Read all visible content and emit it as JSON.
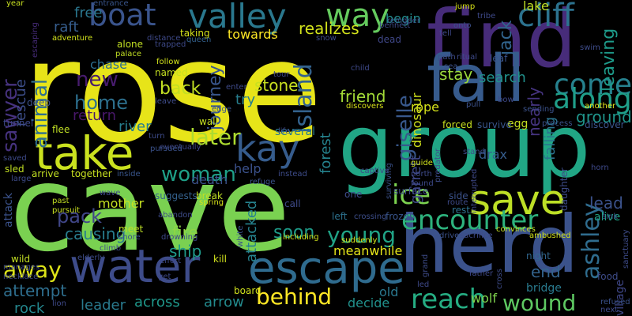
{
  "word_cloud": {
    "background": "#000000",
    "words": [
      {
        "text": "rose",
        "color": "#e7e419"
      },
      {
        "text": "cave",
        "color": "#7ad151"
      },
      {
        "text": "group",
        "color": "#21a685"
      },
      {
        "text": "find",
        "color": "#472c7a"
      },
      {
        "text": "herd",
        "color": "#3b528b"
      },
      {
        "text": "fall",
        "color": "#375b8d"
      },
      {
        "text": "take",
        "color": "#cae11f"
      },
      {
        "text": "water",
        "color": "#3e4c8a"
      },
      {
        "text": "escape",
        "color": "#2f6b8e"
      },
      {
        "text": "boat",
        "color": "#3a548c"
      },
      {
        "text": "valley",
        "color": "#2a788e"
      },
      {
        "text": "kay",
        "color": "#365c8d"
      },
      {
        "text": "save",
        "color": "#bddf26"
      },
      {
        "text": "encounter",
        "color": "#2db27d"
      },
      {
        "text": "way",
        "color": "#65cb5e"
      },
      {
        "text": "cliff",
        "color": "#2c728e"
      },
      {
        "text": "reach",
        "color": "#25ac82"
      },
      {
        "text": "come",
        "color": "#26818e"
      },
      {
        "text": "along",
        "color": "#1f9e89"
      },
      {
        "text": "young",
        "color": "#20a386"
      },
      {
        "text": "ice",
        "color": "#7cd250"
      },
      {
        "text": "behind",
        "color": "#fde725"
      },
      {
        "text": "away",
        "color": "#dde318"
      },
      {
        "text": "pack",
        "color": "#404688"
      },
      {
        "text": "woman",
        "color": "#1fa088"
      },
      {
        "text": "later",
        "color": "#addc30"
      },
      {
        "text": "ashley",
        "color": "#2f6c8e"
      },
      {
        "text": "wound",
        "color": "#5ec962"
      },
      {
        "text": "giselle",
        "color": "#38588c"
      },
      {
        "text": "island",
        "color": "#33628d"
      },
      {
        "text": "new",
        "color": "#481c6e"
      },
      {
        "text": "home",
        "color": "#2d708e"
      },
      {
        "text": "back",
        "color": "#c2df23"
      },
      {
        "text": "sawyer",
        "color": "#46327e"
      },
      {
        "text": "animal",
        "color": "#2e6f8e"
      },
      {
        "text": "journey",
        "color": "#39568c"
      },
      {
        "text": "stone",
        "color": "#c8e020"
      },
      {
        "text": "friend",
        "color": "#a2da37"
      },
      {
        "text": "stay",
        "color": "#9bd93c"
      },
      {
        "text": "jack",
        "color": "#32658e"
      },
      {
        "text": "search",
        "color": "#21918c"
      },
      {
        "text": "ground",
        "color": "#1f958b"
      },
      {
        "text": "leaving",
        "color": "#1e9b8a"
      },
      {
        "text": "nearly",
        "color": "#463480"
      },
      {
        "text": "rescue",
        "color": "#3d4e8a"
      },
      {
        "text": "raft",
        "color": "#365d8d"
      },
      {
        "text": "free",
        "color": "#2a768e"
      },
      {
        "text": "begin",
        "color": "#228c8d"
      },
      {
        "text": "lake",
        "color": "#c0df25"
      },
      {
        "text": "realizes",
        "color": "#d2e21b"
      },
      {
        "text": "towards",
        "color": "#fde725"
      },
      {
        "text": "chase",
        "color": "#2e6e8e"
      },
      {
        "text": "return",
        "color": "#481769"
      },
      {
        "text": "river",
        "color": "#277f8e"
      },
      {
        "text": "try",
        "color": "#277e8e"
      },
      {
        "text": "forest",
        "color": "#25838e"
      },
      {
        "text": "help",
        "color": "#3b518b"
      },
      {
        "text": "mother",
        "color": "#c5e021"
      },
      {
        "text": "fire",
        "color": "#8ed645"
      },
      {
        "text": "ship",
        "color": "#1f9a8a"
      },
      {
        "text": "attacked",
        "color": "#26828e"
      },
      {
        "text": "soon",
        "color": "#1e9c89"
      },
      {
        "text": "meanwhile",
        "color": "#e5e419"
      },
      {
        "text": "garrett",
        "color": "#3f4889"
      },
      {
        "text": "dinosaur",
        "color": "#d0e11c"
      },
      {
        "text": "falling",
        "color": "#2b748e"
      },
      {
        "text": "lead",
        "color": "#3b528b"
      },
      {
        "text": "alive",
        "color": "#20a486"
      },
      {
        "text": "end",
        "color": "#33638d"
      },
      {
        "text": "attempt",
        "color": "#2e6e8e"
      },
      {
        "text": "leader",
        "color": "#297a8e"
      },
      {
        "text": "across",
        "color": "#1f988b"
      },
      {
        "text": "arrow",
        "color": "#238a8d"
      },
      {
        "text": "rock",
        "color": "#24878e"
      },
      {
        "text": "causing",
        "color": "#287d8e"
      },
      {
        "text": "decide",
        "color": "#21918c"
      },
      {
        "text": "wolf",
        "color": "#7fd34e"
      },
      {
        "text": "old",
        "color": "#2a778e"
      },
      {
        "text": "village",
        "color": "#3f4788"
      },
      {
        "text": "drax",
        "color": "#365d8d"
      },
      {
        "text": "rope",
        "color": "#d5e21a"
      },
      {
        "text": "eventually",
        "color": "#3f4788"
      },
      {
        "text": "death",
        "color": "#3b518b"
      },
      {
        "text": "several",
        "color": "#287c8e"
      },
      {
        "text": "sled",
        "color": "#c2df23"
      },
      {
        "text": "flee",
        "color": "#c0df25"
      },
      {
        "text": "wall",
        "color": "#c5e021"
      },
      {
        "text": "together",
        "color": "#c8e020"
      },
      {
        "text": "arrive",
        "color": "#c2df23"
      },
      {
        "text": "inside",
        "color": "#39568c"
      },
      {
        "text": "suggests",
        "color": "#34618d"
      },
      {
        "text": "instead",
        "color": "#3e4c8a"
      },
      {
        "text": "call",
        "color": "#3e4a89"
      },
      {
        "text": "meet",
        "color": "#bddf26"
      },
      {
        "text": "spring",
        "color": "#d8e219"
      },
      {
        "text": "break",
        "color": "#c0df25"
      },
      {
        "text": "board",
        "color": "#d0e11c"
      },
      {
        "text": "left",
        "color": "#2c718e"
      },
      {
        "text": "crossing",
        "color": "#3d4e8a"
      },
      {
        "text": "frozen",
        "color": "#39558c"
      },
      {
        "text": "surface",
        "color": "#3e4989"
      },
      {
        "text": "side",
        "color": "#3b528b"
      },
      {
        "text": "rest",
        "color": "#2d708e"
      },
      {
        "text": "daughter",
        "color": "#3e4c8a"
      },
      {
        "text": "night",
        "color": "#31668e"
      },
      {
        "text": "bridge",
        "color": "#297a8e"
      },
      {
        "text": "food",
        "color": "#3e4c8a"
      },
      {
        "text": "egg",
        "color": "#c5e021"
      },
      {
        "text": "forced",
        "color": "#c8e020"
      },
      {
        "text": "survive",
        "color": "#39568c"
      },
      {
        "text": "process",
        "color": "#3b518b"
      },
      {
        "text": "discover",
        "color": "#3a548c"
      },
      {
        "text": "another",
        "color": "#e5e419"
      },
      {
        "text": "kill",
        "color": "#d0e11c"
      },
      {
        "text": "wild",
        "color": "#c2df23"
      },
      {
        "text": "elderly",
        "color": "#3e4c8a"
      },
      {
        "text": "tunnel",
        "color": "#3e4989"
      },
      {
        "text": "deep",
        "color": "#3b528b"
      },
      {
        "text": "year",
        "color": "#c8e020"
      },
      {
        "text": "entrance",
        "color": "#39558c"
      },
      {
        "text": "jump",
        "color": "#d8e219"
      },
      {
        "text": "tribe",
        "color": "#3e4989"
      },
      {
        "text": "alone",
        "color": "#c2df23"
      },
      {
        "text": "taking",
        "color": "#d5e21a"
      },
      {
        "text": "queen",
        "color": "#34618d"
      },
      {
        "text": "reindeer",
        "color": "#3b528b"
      },
      {
        "text": "snow",
        "color": "#3e4c8a"
      },
      {
        "text": "tell",
        "color": "#3e4989"
      },
      {
        "text": "dead",
        "color": "#3f4788"
      },
      {
        "text": "onto",
        "color": "#3b518b"
      },
      {
        "text": "path",
        "color": "#3e4c8a"
      },
      {
        "text": "ritual",
        "color": "#3e4a89"
      },
      {
        "text": "leaf",
        "color": "#3a548c"
      },
      {
        "text": "adventure",
        "color": "#d0e11c"
      },
      {
        "text": "escaping",
        "color": "#472c7a"
      },
      {
        "text": "distance",
        "color": "#3e4989"
      },
      {
        "text": "trapped",
        "color": "#3e4a89"
      },
      {
        "text": "named",
        "color": "#c5e021"
      },
      {
        "text": "follow",
        "color": "#d2e21b"
      },
      {
        "text": "palace",
        "color": "#c2df23"
      },
      {
        "text": "bennett",
        "color": "#3e4c8a"
      },
      {
        "text": "child",
        "color": "#3e4989"
      },
      {
        "text": "pull",
        "color": "#3b518b"
      },
      {
        "text": "swim",
        "color": "#3e4c8a"
      },
      {
        "text": "bow",
        "color": "#3e4989"
      },
      {
        "text": "sending",
        "color": "#3b528b"
      },
      {
        "text": "enter",
        "color": "#3e4a89"
      },
      {
        "text": "tour",
        "color": "#3e4989"
      },
      {
        "text": "leave",
        "color": "#3e4c8a"
      },
      {
        "text": "edge",
        "color": "#3b528b"
      },
      {
        "text": "discovers",
        "color": "#d8e219"
      },
      {
        "text": "life",
        "color": "#3f4788"
      },
      {
        "text": "turn",
        "color": "#3e4c8a"
      },
      {
        "text": "pursued",
        "color": "#3b528b"
      },
      {
        "text": "north",
        "color": "#3e4a89"
      },
      {
        "text": "guide",
        "color": "#d0e11c"
      },
      {
        "text": "found",
        "color": "#3e4989"
      },
      {
        "text": "surviving",
        "color": "#3b528b"
      },
      {
        "text": "predator",
        "color": "#3e4c8a"
      },
      {
        "text": "interrupted",
        "color": "#3e4989"
      },
      {
        "text": "stand",
        "color": "#3e4c8a"
      },
      {
        "text": "captive",
        "color": "#3e4989"
      },
      {
        "text": "refuge",
        "color": "#3b528b"
      },
      {
        "text": "route",
        "color": "#3e4a89"
      },
      {
        "text": "large",
        "color": "#3e4c8a"
      },
      {
        "text": "past",
        "color": "#c2df23"
      },
      {
        "text": "wave",
        "color": "#3e4989"
      },
      {
        "text": "pursuit",
        "color": "#c8e020"
      },
      {
        "text": "abandon",
        "color": "#3e4c8a"
      },
      {
        "text": "drowning",
        "color": "#3e4989"
      },
      {
        "text": "shore",
        "color": "#3b528b"
      },
      {
        "text": "climb",
        "color": "#3e4a89"
      },
      {
        "text": "effort",
        "color": "#3e4c8a"
      },
      {
        "text": "get",
        "color": "#3e4989"
      },
      {
        "text": "white",
        "color": "#3b528b"
      },
      {
        "text": "including",
        "color": "#d0e11c"
      },
      {
        "text": "suddenly",
        "color": "#d5e21a"
      },
      {
        "text": "grand",
        "color": "#3e4c8a"
      },
      {
        "text": "led",
        "color": "#3e4989"
      },
      {
        "text": "drive",
        "color": "#3b528b"
      },
      {
        "text": "sacrifice",
        "color": "#3e4a89"
      },
      {
        "text": "convinces",
        "color": "#c5e021"
      },
      {
        "text": "ambushed",
        "color": "#d2e21b"
      },
      {
        "text": "cross",
        "color": "#3e4c8a"
      },
      {
        "text": "father",
        "color": "#3e4989"
      },
      {
        "text": "refused",
        "color": "#3b528b"
      },
      {
        "text": "next",
        "color": "#3e4a89"
      },
      {
        "text": "sanctuary",
        "color": "#3e4c8a"
      },
      {
        "text": "horn",
        "color": "#3e4989"
      },
      {
        "text": "sink",
        "color": "#3b528b"
      },
      {
        "text": "attack",
        "color": "#3b528b"
      },
      {
        "text": "manages",
        "color": "#3e4c8a"
      },
      {
        "text": "necklace",
        "color": "#3e4989"
      },
      {
        "text": "one",
        "color": "#3e4c8a"
      },
      {
        "text": "lion",
        "color": "#3e4989"
      },
      {
        "text": "sea",
        "color": "#3b528b"
      },
      {
        "text": "saved",
        "color": "#3e4a89"
      }
    ]
  }
}
